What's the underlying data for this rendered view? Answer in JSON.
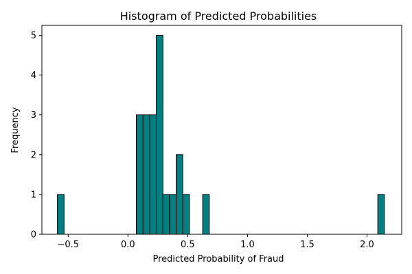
{
  "chart_data": {
    "type": "bar",
    "title": "Histogram of Predicted Probabilities",
    "xlabel": "Predicted Probability of Fraud",
    "ylabel": "Frequency",
    "xlim": [
      -0.72,
      2.29
    ],
    "ylim": [
      0,
      5.25
    ],
    "bin_width": 0.0555,
    "bins": [
      {
        "start": -0.59,
        "count": 1
      },
      {
        "start": 0.07,
        "count": 3
      },
      {
        "start": 0.126,
        "count": 3
      },
      {
        "start": 0.181,
        "count": 3
      },
      {
        "start": 0.237,
        "count": 5
      },
      {
        "start": 0.292,
        "count": 1
      },
      {
        "start": 0.348,
        "count": 1
      },
      {
        "start": 0.403,
        "count": 2
      },
      {
        "start": 0.459,
        "count": 1
      },
      {
        "start": 0.625,
        "count": 1
      },
      {
        "start": 2.09,
        "count": 1
      }
    ],
    "x_ticks": [
      {
        "value": -0.5,
        "label": "−0.5"
      },
      {
        "value": 0.0,
        "label": "0.0"
      },
      {
        "value": 0.5,
        "label": "0.5"
      },
      {
        "value": 1.0,
        "label": "1.0"
      },
      {
        "value": 1.5,
        "label": "1.5"
      },
      {
        "value": 2.0,
        "label": "2.0"
      }
    ],
    "y_ticks": [
      {
        "value": 0,
        "label": "0"
      },
      {
        "value": 1,
        "label": "1"
      },
      {
        "value": 2,
        "label": "2"
      },
      {
        "value": 3,
        "label": "3"
      },
      {
        "value": 4,
        "label": "4"
      },
      {
        "value": 5,
        "label": "5"
      }
    ],
    "grid": false,
    "legend": "none",
    "bar_color": "#008080",
    "edge_color": "#000000"
  }
}
